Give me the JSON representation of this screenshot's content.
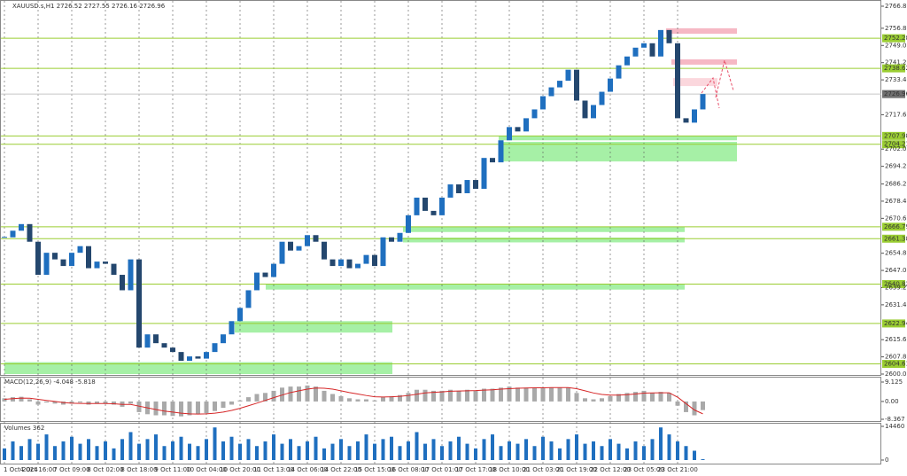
{
  "chart_data": {
    "type": "candlestick",
    "title": "XAUUSD.s,H1  2726.52 2727.55 2726.16 2726.96",
    "categories": [
      "1 Oct 2024",
      null,
      null,
      null,
      "4 Oct 16:00",
      null,
      null,
      null,
      "7 Oct 09:00",
      null,
      null,
      null,
      "8 Oct 02:00",
      null,
      null,
      null,
      "8 Oct 18:00",
      null,
      null,
      null,
      "9 Oct 11:00",
      null,
      null,
      null,
      "10 Oct 04:00",
      null,
      null,
      null,
      "10 Oct 20:00",
      null,
      null,
      null,
      "11 Oct 13:00",
      null,
      null,
      null,
      "14 Oct 06:00",
      null,
      null,
      null,
      "14 Oct 22:00",
      null,
      null,
      null,
      "15 Oct 15:00",
      null,
      null,
      null,
      "16 Oct 08:00",
      null,
      null,
      null,
      "17 Oct 01:00",
      null,
      null,
      null,
      "17 Oct 17:00",
      null,
      null,
      null,
      "18 Oct 10:00",
      null,
      null,
      null,
      "21 Oct 03:00",
      null,
      null,
      null,
      "21 Oct 19:00",
      null,
      null,
      null,
      "22 Oct 12:00",
      null,
      null,
      null,
      "23 Oct 05:00",
      null,
      null,
      null,
      "23 Oct 21:00",
      null,
      null,
      null
    ],
    "series": [
      {
        "up_color": "#1f6fbf",
        "down_color": "#24476e",
        "values": [
          2662,
          2665,
          2668,
          2660,
          2645,
          2655,
          2652,
          2649,
          2655,
          2658,
          2648,
          2651,
          2650,
          2645,
          2638,
          2652,
          2612,
          2618,
          2614,
          2612,
          2610,
          2606,
          2608,
          2607,
          2610,
          2614,
          2618,
          2624,
          2630,
          2638,
          2646,
          2644,
          2650,
          2660,
          2656,
          2658,
          2663,
          2660,
          2652,
          2649,
          2652,
          2648,
          2650,
          2654,
          2649,
          2662,
          2660,
          2664,
          2672,
          2680,
          2674,
          2672,
          2680,
          2686,
          2682,
          2688,
          2684,
          2698,
          2696,
          2706,
          2712,
          2710,
          2716,
          2720,
          2726,
          2730,
          2733,
          2738,
          2724,
          2716,
          2722,
          2728,
          2734,
          2740,
          2744,
          2748,
          2750,
          2744,
          2756,
          2750,
          2716,
          2714,
          2720,
          2726.96
        ]
      }
    ],
    "ylim": [
      2600,
      2766.8
    ],
    "yticks": [
      {
        "value": 2766.8,
        "label": "2766.80"
      },
      {
        "value": 2756.8,
        "label": "2756.80"
      },
      {
        "value": 2749.0,
        "label": "2749.00"
      },
      {
        "value": 2741.2,
        "label": "2741.20"
      },
      {
        "value": 2733.4,
        "label": "2733.40"
      },
      {
        "value": 2717.6,
        "label": "2717.60"
      },
      {
        "value": 2702.0,
        "label": "2702.00"
      },
      {
        "value": 2694.2,
        "label": "2694.20"
      },
      {
        "value": 2686.2,
        "label": "2686.20"
      },
      {
        "value": 2678.4,
        "label": "2678.40"
      },
      {
        "value": 2670.6,
        "label": "2670.60"
      },
      {
        "value": 2654.8,
        "label": "2654.80"
      },
      {
        "value": 2647.0,
        "label": "2647.00"
      },
      {
        "value": 2639.2,
        "label": "2639.20"
      },
      {
        "value": 2631.4,
        "label": "2631.40"
      },
      {
        "value": 2615.6,
        "label": "2615.60"
      },
      {
        "value": 2607.8,
        "label": "2607.80"
      },
      {
        "value": 2600.0,
        "label": "2600.00"
      }
    ],
    "grid": true,
    "levels": [
      2752.28,
      2738.62,
      2707.98,
      2704.21,
      2666.79,
      2661.38,
      2640.82,
      2622.94,
      2604.61
    ],
    "level_color": "#9acd32",
    "current_price": 2726.96,
    "zones": [
      {
        "low": 2754.3,
        "high": 2756.8,
        "color": "#f6b8c4"
      },
      {
        "low": 2740.3,
        "high": 2742.7,
        "color": "#f6b8c4"
      },
      {
        "low": 2730.6,
        "high": 2734.2,
        "color": "#fbd7dd"
      },
      {
        "low": 2706.0,
        "high": 2707.98,
        "color": "#a6f0a6"
      },
      {
        "low": 2696.4,
        "high": 2705.3,
        "color": "#a6f0a6"
      },
      {
        "low": 2664.4,
        "high": 2666.79,
        "color": "#a6f0a6"
      },
      {
        "low": 2659.7,
        "high": 2661.9,
        "color": "#a6f0a6"
      },
      {
        "low": 2638.3,
        "high": 2640.82,
        "color": "#a6f0a6"
      },
      {
        "low": 2618.8,
        "high": 2624.0,
        "color": "#a6f0a6"
      },
      {
        "low": 2600.0,
        "high": 2605.4,
        "color": "#a6f0a6"
      }
    ],
    "macd": {
      "label": "MACD(12,26,9) -4.048 -5.818",
      "ylim": [
        -8.367,
        9.125
      ],
      "yticks": [
        9.125,
        {
          "value": 0,
          "label": "0.00"
        },
        -8.367
      ],
      "histogram": {
        "color": "#a9a9a9",
        "values": [
          1.5,
          2,
          2.2,
          1,
          -1.5,
          -0.5,
          -1,
          -1.5,
          -1,
          -0.5,
          -1.5,
          -1,
          -1,
          -1.5,
          -2.5,
          -1,
          -5,
          -6,
          -6.5,
          -6.5,
          -6.8,
          -7,
          -6.5,
          -6,
          -5.5,
          -4.5,
          -3,
          -1.5,
          0.5,
          2,
          3.5,
          4,
          5,
          6.5,
          7,
          7,
          7.5,
          7,
          5,
          3.5,
          2.5,
          1.5,
          1,
          1,
          0.5,
          2,
          2.5,
          3,
          4,
          5.5,
          5.5,
          5,
          5,
          5.5,
          5,
          5.5,
          5,
          6,
          6,
          6.5,
          7,
          6.5,
          6.5,
          6.5,
          6.5,
          6.5,
          6.5,
          6.5,
          4,
          1.5,
          1,
          1.5,
          2.5,
          3.5,
          4,
          4.5,
          5,
          4,
          4.5,
          4,
          -2,
          -5,
          -6.5,
          -4.048
        ]
      },
      "signal": {
        "color": "#d62728",
        "values": [
          1,
          1.3,
          1.6,
          1.5,
          1,
          0.5,
          0,
          -0.5,
          -0.8,
          -0.9,
          -1,
          -1,
          -1,
          -1.1,
          -1.4,
          -1.4,
          -2.2,
          -3,
          -3.8,
          -4.5,
          -5,
          -5.5,
          -5.8,
          -5.9,
          -5.8,
          -5.5,
          -5,
          -4.2,
          -3.2,
          -2,
          -0.8,
          0.5,
          1.8,
          3,
          4.2,
          5,
          5.8,
          6.3,
          6.2,
          5.8,
          5,
          4.2,
          3.5,
          2.8,
          2.2,
          2.1,
          2.2,
          2.4,
          2.8,
          3.4,
          4,
          4.3,
          4.5,
          4.8,
          4.9,
          5,
          5.1,
          5.3,
          5.5,
          5.8,
          6,
          6.2,
          6.3,
          6.4,
          6.4,
          6.5,
          6.5,
          6.5,
          6,
          5,
          4,
          3.3,
          3,
          3,
          3.2,
          3.5,
          3.9,
          4,
          4.1,
          4.1,
          2,
          -1,
          -4,
          -5.818
        ]
      }
    },
    "volumes": {
      "label": "Volumes 362",
      "color": "#1f6fbf",
      "ylim": [
        0,
        14460
      ],
      "yticks": [
        14460,
        0
      ],
      "values": [
        5000,
        8000,
        6000,
        9000,
        7000,
        11000,
        6000,
        8000,
        10000,
        7000,
        9000,
        6000,
        8000,
        5000,
        9000,
        12000,
        7000,
        9000,
        11000,
        6000,
        8000,
        10000,
        7000,
        6000,
        9000,
        14000,
        8000,
        10000,
        7000,
        9000,
        6000,
        8000,
        11000,
        7000,
        9000,
        6000,
        8000,
        10000,
        5000,
        7000,
        9000,
        6000,
        8000,
        11000,
        7000,
        9000,
        10000,
        6000,
        8000,
        12000,
        7000,
        9000,
        6000,
        8000,
        10000,
        7000,
        5000,
        9000,
        11000,
        6000,
        8000,
        7000,
        9000,
        6000,
        10000,
        8000,
        5000,
        9000,
        11000,
        7000,
        8000,
        6000,
        9000,
        7000,
        5000,
        8000,
        6000,
        9000,
        14000,
        11000,
        8000,
        6000,
        4000,
        362
      ]
    }
  }
}
